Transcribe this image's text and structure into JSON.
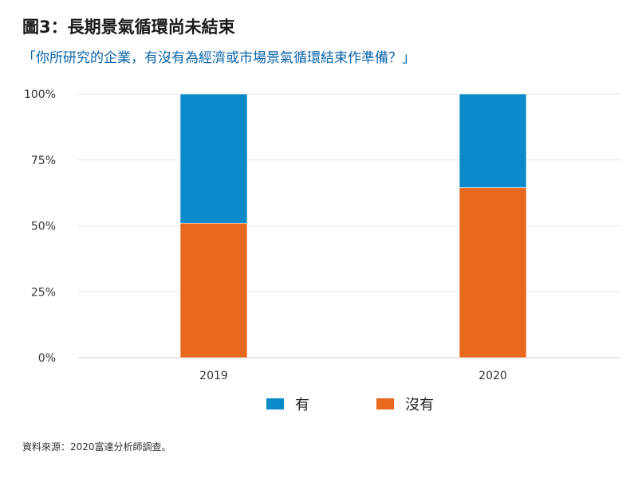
{
  "title": "圖3：長期景氣循環尚未結束",
  "subtitle": "「你所研究的企業，有沒有為經濟或市場景氣循環結束作準備？」",
  "source": "資料來源：2020富達分析師調查。",
  "chart_data": {
    "type": "bar",
    "stacked": true,
    "categories": [
      "2019",
      "2020"
    ],
    "series": [
      {
        "name": "沒有",
        "values": [
          51,
          64.5
        ],
        "color": "#e8681e"
      },
      {
        "name": "有",
        "values": [
          49,
          35.5
        ],
        "color": "#0a8ac9"
      }
    ],
    "ylim": [
      0,
      100
    ],
    "yticks": [
      "0%",
      "25%",
      "50%",
      "75%",
      "100%"
    ],
    "grid": true,
    "legend_position": "bottom"
  },
  "legend": [
    {
      "label": "有",
      "color": "#0a8ac9"
    },
    {
      "label": "沒有",
      "color": "#e8681e"
    }
  ]
}
